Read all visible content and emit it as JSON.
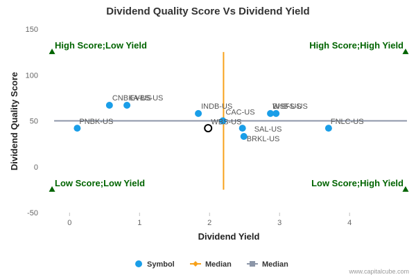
{
  "chart_data": {
    "type": "scatter",
    "title": "Dividend Quality Score Vs Dividend Yield",
    "xlabel": "Dividend Yield",
    "ylabel": "Dividend Quality Score",
    "xlim": [
      -0.3,
      4.85
    ],
    "ylim": [
      -50,
      150
    ],
    "xticks": [
      0,
      1,
      2,
      3,
      4
    ],
    "yticks": [
      -50,
      0,
      50,
      100,
      150
    ],
    "grid": false,
    "legend_position": "bottom",
    "points": [
      {
        "label": "PNBK-US",
        "x": 0.11,
        "y": 42
      },
      {
        "label": "CNBKA-US",
        "x": 0.57,
        "y": 67
      },
      {
        "label": "EVBS-US",
        "x": 0.82,
        "y": 67
      },
      {
        "label": "INDB-US",
        "x": 1.84,
        "y": 58
      },
      {
        "label": "CAC-US",
        "x": 2.19,
        "y": 50
      },
      {
        "label": "WBS-US",
        "x": 2.19,
        "y": 50
      },
      {
        "label": "SAL-US",
        "x": 2.47,
        "y": 42
      },
      {
        "label": "BRKL-US",
        "x": 2.49,
        "y": 33
      },
      {
        "label": "WSFS-US",
        "x": 2.87,
        "y": 58
      },
      {
        "label": "BHB-US",
        "x": 2.95,
        "y": 58
      },
      {
        "label": "FNLC-US",
        "x": 3.7,
        "y": 42
      }
    ],
    "highlight_point": {
      "x": 1.98,
      "y": 42
    },
    "median_x": 2.2,
    "median_y": 50,
    "quadrants": {
      "top_left": "High Score;Low Yield",
      "top_right": "High Score;High Yield",
      "bottom_left": "Low Score;Low Yield",
      "bottom_right": "Low Score;High Yield"
    },
    "legend": [
      "Symbol",
      "Median",
      "Median"
    ],
    "colors": {
      "points": "#1a9ee8",
      "median_vertical": "#f7a11a",
      "median_horizontal": "#8c96a8",
      "quadrant_text": "#006400"
    }
  },
  "credit": "www.capitalcube.com"
}
